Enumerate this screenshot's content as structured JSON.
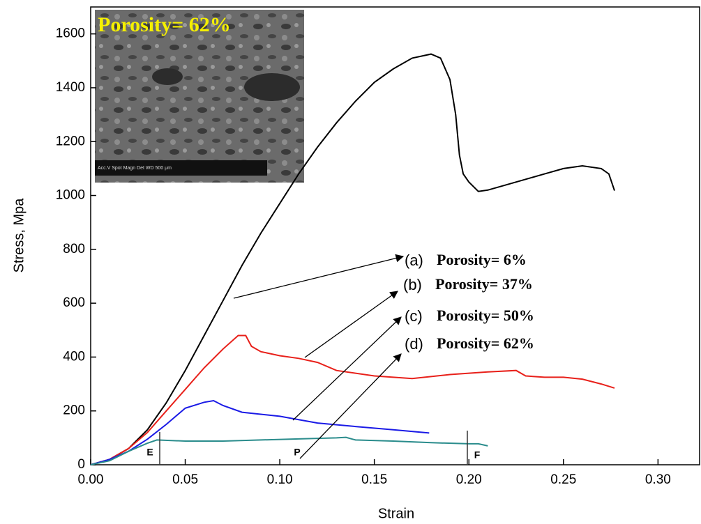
{
  "chart_data": {
    "type": "line",
    "x_label": "Strain",
    "y_label": "Stress, Mpa",
    "xlim": [
      0,
      0.322
    ],
    "ylim": [
      0,
      1700
    ],
    "xticks": [
      {
        "value": 0,
        "label": "0.00"
      },
      {
        "value": 0.05,
        "label": "0.05"
      },
      {
        "value": 0.1,
        "label": "0.10"
      },
      {
        "value": 0.15,
        "label": "0.15"
      },
      {
        "value": 0.2,
        "label": "0.20"
      },
      {
        "value": 0.25,
        "label": "0.25"
      },
      {
        "value": 0.3,
        "label": "0.30"
      }
    ],
    "yticks": [
      0,
      200,
      400,
      600,
      800,
      1000,
      1200,
      1400,
      1600
    ],
    "series": [
      {
        "name": "(a) Porosity= 6%",
        "color": "#000000",
        "x": [
          0,
          0.01,
          0.02,
          0.03,
          0.04,
          0.05,
          0.06,
          0.07,
          0.08,
          0.09,
          0.1,
          0.11,
          0.12,
          0.13,
          0.14,
          0.15,
          0.16,
          0.17,
          0.18,
          0.185,
          0.19,
          0.193,
          0.195,
          0.197,
          0.2,
          0.205,
          0.21,
          0.22,
          0.23,
          0.24,
          0.25,
          0.26,
          0.27,
          0.274,
          0.277
        ],
        "values": [
          0,
          20,
          60,
          130,
          230,
          350,
          480,
          610,
          740,
          860,
          970,
          1080,
          1180,
          1270,
          1350,
          1420,
          1470,
          1510,
          1525,
          1510,
          1430,
          1300,
          1150,
          1080,
          1050,
          1015,
          1020,
          1040,
          1060,
          1080,
          1100,
          1110,
          1100,
          1080,
          1018
        ]
      },
      {
        "name": "(b) Porosity= 37%",
        "color": "#e8201a",
        "x": [
          0,
          0.01,
          0.02,
          0.03,
          0.04,
          0.05,
          0.06,
          0.07,
          0.078,
          0.082,
          0.085,
          0.09,
          0.1,
          0.11,
          0.12,
          0.13,
          0.15,
          0.17,
          0.19,
          0.21,
          0.225,
          0.23,
          0.24,
          0.25,
          0.26,
          0.27,
          0.277
        ],
        "values": [
          0,
          20,
          60,
          120,
          200,
          280,
          360,
          430,
          480,
          480,
          440,
          420,
          405,
          395,
          380,
          350,
          330,
          320,
          335,
          345,
          350,
          330,
          325,
          325,
          318,
          300,
          285
        ]
      },
      {
        "name": "(c) Porosity= 50%",
        "color": "#1a1ae6",
        "x": [
          0,
          0.01,
          0.02,
          0.03,
          0.04,
          0.05,
          0.06,
          0.065,
          0.07,
          0.08,
          0.1,
          0.12,
          0.14,
          0.16,
          0.179
        ],
        "values": [
          0,
          20,
          50,
          95,
          150,
          210,
          232,
          238,
          220,
          195,
          180,
          155,
          142,
          130,
          118
        ]
      },
      {
        "name": "(d) Porosity= 62%",
        "color": "#2a8c8c",
        "x": [
          0,
          0.01,
          0.02,
          0.03,
          0.035,
          0.05,
          0.07,
          0.09,
          0.11,
          0.13,
          0.135,
          0.14,
          0.16,
          0.18,
          0.2,
          0.205,
          0.21
        ],
        "values": [
          0,
          15,
          50,
          80,
          92,
          88,
          88,
          92,
          96,
          100,
          102,
          92,
          88,
          82,
          78,
          78,
          70
        ]
      }
    ],
    "annotations": [
      {
        "letter": "(a)",
        "text": "Porosity= 6%"
      },
      {
        "letter": "(b)",
        "text": "Porosity= 37%"
      },
      {
        "letter": "(c)",
        "text": "Porosity= 50%"
      },
      {
        "letter": "(d)",
        "text": "Porosity= 62%"
      }
    ],
    "regions": [
      "E",
      "P",
      "F"
    ],
    "inset_title": "Porosity= 62%",
    "inset_caption": "Acc.V  Spot Magn   Det  WD      500 μm"
  }
}
